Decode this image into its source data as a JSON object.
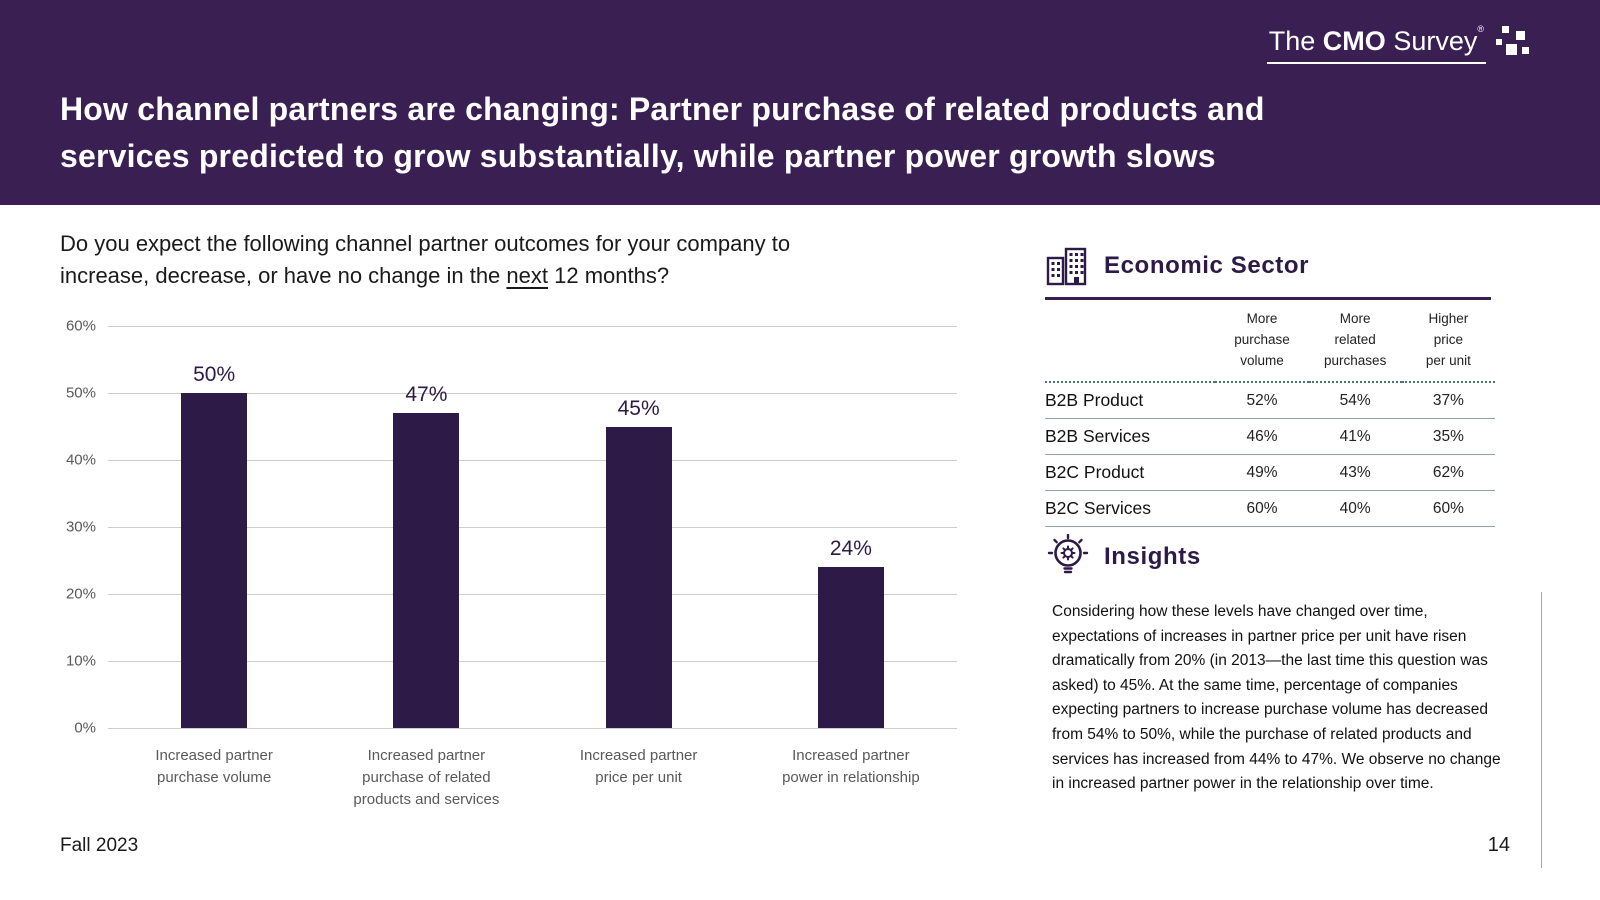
{
  "logo": {
    "the": "The",
    "cmo": "CMO",
    "survey": "Survey",
    "reg": "®"
  },
  "header": {
    "title_line1": "How channel partners are changing: Partner purchase of related products and",
    "title_line2": "services predicted to grow substantially, while partner power growth slows"
  },
  "question": {
    "pre": "Do you expect the following channel partner outcomes for your company to\nincrease, decrease, or have no change in the ",
    "underline": "next",
    "post": " 12 months?"
  },
  "chart_data": {
    "type": "bar",
    "categories": [
      "Increased partner\npurchase volume",
      "Increased partner\npurchase of related\nproducts and services",
      "Increased partner\nprice per unit",
      "Increased partner\npower in relationship"
    ],
    "values": [
      50,
      47,
      45,
      24
    ],
    "value_labels": [
      "50%",
      "47%",
      "45%",
      "24%"
    ],
    "title": "",
    "xlabel": "",
    "ylabel": "",
    "ylim": [
      0,
      60
    ],
    "yticks": [
      0,
      10,
      20,
      30,
      40,
      50,
      60
    ],
    "grid": true,
    "legend": "none",
    "bar_color": "#2e1a47"
  },
  "sector_table": {
    "icon": "buildings-icon",
    "title": "Economic Sector",
    "columns": [
      "More\npurchase\nvolume",
      "More\nrelated\npurchases",
      "Higher\nprice\nper unit"
    ],
    "rows": [
      {
        "label": "B2B Product",
        "values": [
          "52%",
          "54%",
          "37%"
        ]
      },
      {
        "label": "B2B Services",
        "values": [
          "46%",
          "41%",
          "35%"
        ]
      },
      {
        "label": "B2C Product",
        "values": [
          "49%",
          "43%",
          "62%"
        ]
      },
      {
        "label": "B2C Services",
        "values": [
          "60%",
          "40%",
          "60%"
        ]
      }
    ]
  },
  "insights": {
    "icon": "lightbulb-gear-icon",
    "title": "Insights",
    "text": "Considering how these levels have changed over time, expectations of increases in partner price per unit have risen dramatically from 20% (in 2013—the last time this question was asked) to 45%. At the same time, percentage of companies expecting partners to increase purchase volume has decreased from 54% to 50%, while the purchase of related products and services has increased from 44% to 47%. We observe no change in increased partner power in the relationship over time."
  },
  "footer": {
    "left": "Fall 2023",
    "page": "14"
  },
  "colors": {
    "header_bg": "#3a2052",
    "bar": "#2e1a47",
    "accent_purple": "#2e1a47",
    "rule_purple": "#3a2052",
    "dotted_line": "#4e7380",
    "grid_line": "#cdcdcd",
    "muted_text": "#595959"
  }
}
